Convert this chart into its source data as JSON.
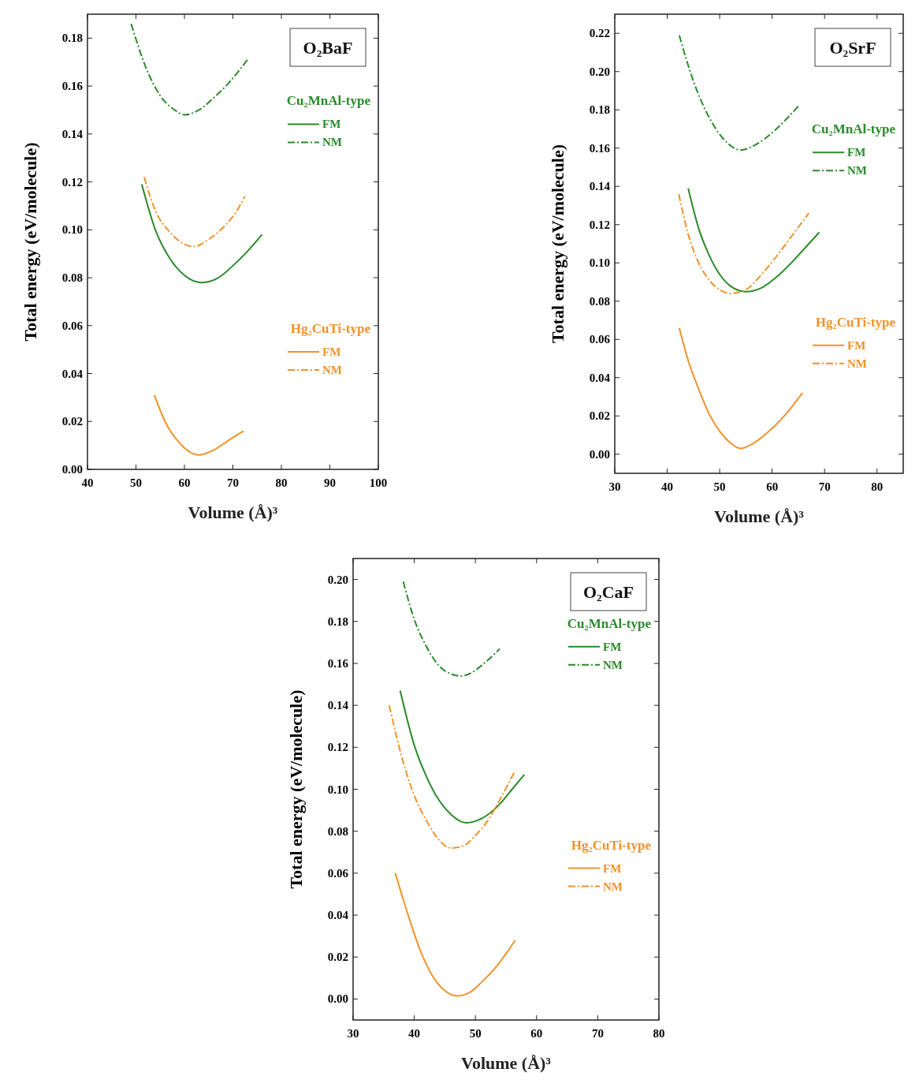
{
  "chart_data": [
    {
      "type": "line",
      "title": "O₂BaF",
      "xlabel": "Volume (Å)³",
      "ylabel": "Total energy (eV/molecule)",
      "xlim": [
        40,
        100
      ],
      "xticks": [
        40,
        50,
        60,
        70,
        80,
        90,
        100
      ],
      "ylim": [
        0,
        0.19
      ],
      "yticks": [
        {
          "value": 0,
          "label": "0.00"
        },
        {
          "value": 0.02,
          "label": "0.02"
        },
        {
          "value": 0.04,
          "label": "0.04"
        },
        {
          "value": 0.06,
          "label": "0.06"
        },
        {
          "value": 0.08,
          "label": "0.08"
        },
        {
          "value": 0.1,
          "label": "0.10"
        },
        {
          "value": 0.12,
          "label": "0.12"
        },
        {
          "value": 0.14,
          "label": "0.14"
        },
        {
          "value": 0.16,
          "label": "0.16"
        },
        {
          "value": 0.18,
          "label": "0.18"
        }
      ],
      "grid": false,
      "legend": "right",
      "annotations": [
        "Cu₂MnAl-type",
        "Hg₂CuTi-type"
      ],
      "series": [
        {
          "name": "FM",
          "color": "#2a8a2a",
          "line_style": "solid",
          "x": [
            51.2,
            54,
            57,
            60,
            63.5,
            67,
            70,
            73,
            76
          ],
          "values": [
            0.119,
            0.1,
            0.088,
            0.081,
            0.078,
            0.08,
            0.085,
            0.091,
            0.098
          ]
        },
        {
          "name": "NM",
          "color": "#2a8a2a",
          "line_style": "dashed",
          "x": [
            49,
            52,
            55,
            58,
            60,
            63,
            66,
            69,
            73
          ],
          "values": [
            0.186,
            0.168,
            0.156,
            0.15,
            0.148,
            0.15,
            0.155,
            0.161,
            0.171
          ]
        },
        {
          "name": "FM",
          "color": "#f0922a",
          "line_style": "solid",
          "x": [
            53.8,
            56,
            59,
            63,
            66,
            69,
            72.2
          ],
          "values": [
            0.031,
            0.02,
            0.011,
            0.006,
            0.008,
            0.012,
            0.016
          ]
        },
        {
          "name": "NM",
          "color": "#f0922a",
          "line_style": "dashed",
          "x": [
            51.7,
            54,
            57,
            60,
            62,
            65,
            68,
            70.5,
            72.5
          ],
          "values": [
            0.122,
            0.108,
            0.099,
            0.094,
            0.093,
            0.096,
            0.101,
            0.107,
            0.114
          ]
        }
      ]
    },
    {
      "type": "line",
      "title": "O₂SrF",
      "xlabel": "Volume (Å)³",
      "ylabel": "Total energy (eV/molecule)",
      "xlim": [
        30,
        85
      ],
      "xticks": [
        30,
        40,
        50,
        60,
        70,
        80
      ],
      "ylim": [
        -0.01,
        0.23
      ],
      "yticks": [
        {
          "value": 0,
          "label": "0.00"
        },
        {
          "value": 0.02,
          "label": "0.02"
        },
        {
          "value": 0.04,
          "label": "0.04"
        },
        {
          "value": 0.06,
          "label": "0.06"
        },
        {
          "value": 0.08,
          "label": "0.08"
        },
        {
          "value": 0.1,
          "label": "0.10"
        },
        {
          "value": 0.12,
          "label": "0.12"
        },
        {
          "value": 0.14,
          "label": "0.14"
        },
        {
          "value": 0.16,
          "label": "0.16"
        },
        {
          "value": 0.18,
          "label": "0.18"
        },
        {
          "value": 0.2,
          "label": "0.20"
        },
        {
          "value": 0.22,
          "label": "0.22"
        }
      ],
      "grid": false,
      "legend": "right",
      "annotations": [
        "Cu₂MnAl-type",
        "Hg₂CuTi-type"
      ],
      "series": [
        {
          "name": "FM",
          "color": "#2a8a2a",
          "line_style": "solid",
          "x": [
            44,
            46,
            48,
            50,
            52,
            55,
            58,
            61,
            64,
            67,
            69
          ],
          "values": [
            0.139,
            0.118,
            0.104,
            0.094,
            0.088,
            0.085,
            0.087,
            0.093,
            0.101,
            0.11,
            0.116
          ]
        },
        {
          "name": "NM",
          "color": "#2a8a2a",
          "line_style": "dashed",
          "x": [
            42.3,
            45,
            48,
            51,
            54,
            57,
            60,
            63,
            65
          ],
          "values": [
            0.219,
            0.195,
            0.176,
            0.164,
            0.159,
            0.162,
            0.168,
            0.176,
            0.182
          ]
        },
        {
          "name": "FM",
          "color": "#f0922a",
          "line_style": "solid",
          "x": [
            42.3,
            44,
            46,
            48,
            50,
            52,
            54,
            56,
            59,
            62,
            65.8
          ],
          "values": [
            0.066,
            0.049,
            0.034,
            0.021,
            0.012,
            0.006,
            0.003,
            0.005,
            0.011,
            0.019,
            0.032
          ]
        },
        {
          "name": "NM",
          "color": "#f0922a",
          "line_style": "dashed",
          "x": [
            42.2,
            44,
            46,
            48,
            50,
            52,
            55,
            58,
            61,
            64,
            67
          ],
          "values": [
            0.136,
            0.115,
            0.1,
            0.091,
            0.086,
            0.084,
            0.086,
            0.094,
            0.104,
            0.115,
            0.126
          ]
        }
      ]
    },
    {
      "type": "line",
      "title": "O₂CaF",
      "xlabel": "Volume (Å)³",
      "ylabel": "Total energy (eV/molecule)",
      "xlim": [
        30,
        80
      ],
      "xticks": [
        30,
        40,
        50,
        60,
        70,
        80
      ],
      "ylim": [
        -0.01,
        0.21
      ],
      "yticks": [
        {
          "value": 0,
          "label": "0.00"
        },
        {
          "value": 0.02,
          "label": "0.02"
        },
        {
          "value": 0.04,
          "label": "0.04"
        },
        {
          "value": 0.06,
          "label": "0.06"
        },
        {
          "value": 0.08,
          "label": "0.08"
        },
        {
          "value": 0.1,
          "label": "0.10"
        },
        {
          "value": 0.12,
          "label": "0.12"
        },
        {
          "value": 0.14,
          "label": "0.14"
        },
        {
          "value": 0.16,
          "label": "0.16"
        },
        {
          "value": 0.18,
          "label": "0.18"
        },
        {
          "value": 0.2,
          "label": "0.20"
        }
      ],
      "grid": false,
      "legend": "right",
      "annotations": [
        "Cu₂MnAl-type",
        "Hg₂CuTi-type"
      ],
      "series": [
        {
          "name": "FM",
          "color": "#2a8a2a",
          "line_style": "solid",
          "x": [
            37.7,
            40,
            42,
            44,
            46,
            48.5,
            51,
            54,
            56,
            58
          ],
          "values": [
            0.147,
            0.121,
            0.106,
            0.095,
            0.088,
            0.084,
            0.086,
            0.093,
            0.1,
            0.107
          ]
        },
        {
          "name": "NM",
          "color": "#2a8a2a",
          "line_style": "dashed",
          "x": [
            38.2,
            40,
            42,
            44,
            46,
            47.5,
            49,
            51,
            54
          ],
          "values": [
            0.199,
            0.181,
            0.168,
            0.159,
            0.155,
            0.154,
            0.155,
            0.159,
            0.167
          ]
        },
        {
          "name": "FM",
          "color": "#f0922a",
          "line_style": "solid",
          "x": [
            36.9,
            39,
            41,
            43,
            45,
            47,
            49,
            51,
            53,
            56.5
          ],
          "values": [
            0.06,
            0.04,
            0.023,
            0.011,
            0.004,
            0.0015,
            0.003,
            0.008,
            0.014,
            0.028
          ]
        },
        {
          "name": "NM",
          "color": "#f0922a",
          "line_style": "dashed",
          "x": [
            35.9,
            38,
            40,
            42,
            44,
            46,
            48,
            50,
            52,
            54,
            56.5
          ],
          "values": [
            0.14,
            0.115,
            0.097,
            0.085,
            0.076,
            0.072,
            0.073,
            0.078,
            0.085,
            0.095,
            0.109
          ]
        }
      ]
    }
  ]
}
